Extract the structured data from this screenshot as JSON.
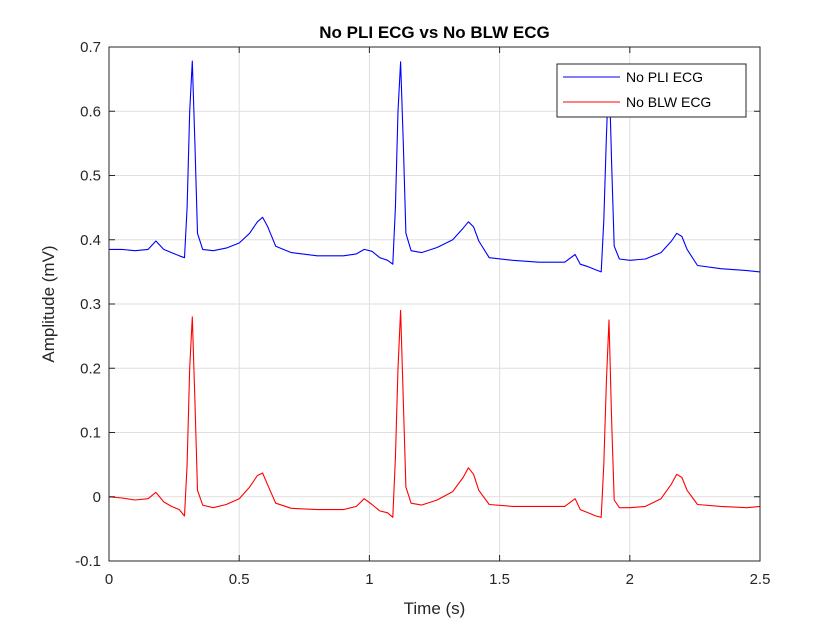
{
  "chart_data": {
    "type": "line",
    "title": "No PLI ECG vs No BLW ECG",
    "xlabel": "Time (s)",
    "ylabel": "Amplitude (mV)",
    "xlim": [
      0,
      2.5
    ],
    "ylim": [
      -0.1,
      0.7
    ],
    "xticks": [
      0,
      0.5,
      1,
      1.5,
      2,
      2.5
    ],
    "xtick_labels": [
      "0",
      "0.5",
      "1",
      "1.5",
      "2",
      "2.5"
    ],
    "yticks": [
      -0.1,
      0,
      0.1,
      0.2,
      0.3,
      0.4,
      0.5,
      0.6,
      0.7
    ],
    "ytick_labels": [
      "-0.1",
      "0",
      "0.1",
      "0.2",
      "0.3",
      "0.4",
      "0.5",
      "0.6",
      "0.7"
    ],
    "grid": true,
    "legend_position": "top-right",
    "series": [
      {
        "name": "No PLI ECG",
        "color": "#0000ff",
        "x": [
          0,
          0.05,
          0.1,
          0.15,
          0.18,
          0.21,
          0.24,
          0.27,
          0.29,
          0.3,
          0.31,
          0.32,
          0.33,
          0.34,
          0.36,
          0.4,
          0.45,
          0.5,
          0.54,
          0.57,
          0.59,
          0.61,
          0.64,
          0.7,
          0.8,
          0.9,
          0.95,
          0.98,
          1.01,
          1.04,
          1.07,
          1.09,
          1.1,
          1.11,
          1.12,
          1.13,
          1.14,
          1.16,
          1.2,
          1.26,
          1.32,
          1.36,
          1.38,
          1.4,
          1.42,
          1.46,
          1.55,
          1.65,
          1.75,
          1.79,
          1.81,
          1.84,
          1.87,
          1.89,
          1.9,
          1.91,
          1.92,
          1.93,
          1.94,
          1.96,
          2.0,
          2.06,
          2.12,
          2.16,
          2.18,
          2.2,
          2.22,
          2.26,
          2.35,
          2.45,
          2.5
        ],
        "y": [
          0.385,
          0.385,
          0.383,
          0.385,
          0.398,
          0.385,
          0.38,
          0.375,
          0.372,
          0.45,
          0.6,
          0.678,
          0.55,
          0.41,
          0.385,
          0.383,
          0.387,
          0.395,
          0.41,
          0.428,
          0.435,
          0.42,
          0.39,
          0.38,
          0.375,
          0.375,
          0.378,
          0.385,
          0.382,
          0.372,
          0.368,
          0.362,
          0.45,
          0.6,
          0.677,
          0.55,
          0.41,
          0.383,
          0.38,
          0.388,
          0.4,
          0.418,
          0.428,
          0.42,
          0.398,
          0.372,
          0.368,
          0.365,
          0.365,
          0.377,
          0.362,
          0.358,
          0.353,
          0.35,
          0.43,
          0.56,
          0.67,
          0.52,
          0.39,
          0.37,
          0.368,
          0.37,
          0.38,
          0.398,
          0.41,
          0.405,
          0.385,
          0.36,
          0.355,
          0.352,
          0.35
        ]
      },
      {
        "name": "No BLW ECG",
        "color": "#ff0000",
        "x": [
          0,
          0.05,
          0.1,
          0.15,
          0.18,
          0.21,
          0.24,
          0.27,
          0.29,
          0.3,
          0.31,
          0.32,
          0.33,
          0.34,
          0.36,
          0.4,
          0.45,
          0.5,
          0.54,
          0.57,
          0.59,
          0.61,
          0.64,
          0.7,
          0.8,
          0.9,
          0.95,
          0.98,
          1.01,
          1.04,
          1.07,
          1.09,
          1.1,
          1.11,
          1.12,
          1.13,
          1.14,
          1.16,
          1.2,
          1.26,
          1.32,
          1.36,
          1.38,
          1.4,
          1.42,
          1.46,
          1.55,
          1.65,
          1.75,
          1.79,
          1.81,
          1.84,
          1.87,
          1.89,
          1.9,
          1.91,
          1.92,
          1.93,
          1.94,
          1.96,
          2.0,
          2.06,
          2.12,
          2.16,
          2.18,
          2.2,
          2.22,
          2.26,
          2.35,
          2.45,
          2.5
        ],
        "y": [
          0.0,
          -0.002,
          -0.005,
          -0.003,
          0.007,
          -0.008,
          -0.015,
          -0.02,
          -0.03,
          0.05,
          0.2,
          0.28,
          0.15,
          0.01,
          -0.013,
          -0.017,
          -0.012,
          -0.003,
          0.015,
          0.033,
          0.037,
          0.018,
          -0.01,
          -0.018,
          -0.02,
          -0.02,
          -0.015,
          -0.003,
          -0.012,
          -0.022,
          -0.025,
          -0.032,
          0.06,
          0.2,
          0.29,
          0.15,
          0.015,
          -0.01,
          -0.013,
          -0.005,
          0.008,
          0.03,
          0.045,
          0.035,
          0.01,
          -0.012,
          -0.015,
          -0.015,
          -0.015,
          -0.003,
          -0.02,
          -0.025,
          -0.03,
          -0.032,
          0.05,
          0.18,
          0.275,
          0.12,
          -0.005,
          -0.017,
          -0.017,
          -0.015,
          -0.003,
          0.02,
          0.035,
          0.03,
          0.01,
          -0.012,
          -0.015,
          -0.017,
          -0.015
        ]
      }
    ]
  }
}
